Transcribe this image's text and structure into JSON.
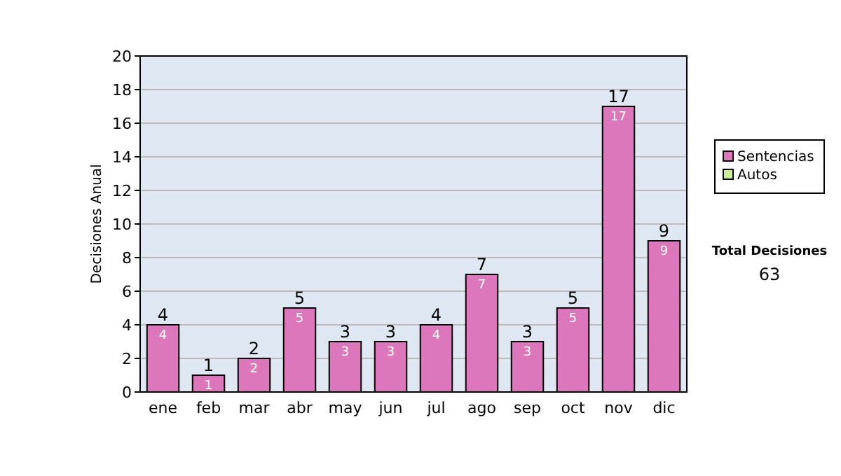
{
  "chart_data": {
    "type": "bar",
    "stacked": true,
    "ylabel": "Decisiones Anual",
    "categories": [
      "ene",
      "feb",
      "mar",
      "abr",
      "may",
      "jun",
      "jul",
      "ago",
      "sep",
      "oct",
      "nov",
      "dic"
    ],
    "series": [
      {
        "name": "Sentencias",
        "color": "#dd77bb",
        "values": [
          4,
          1,
          2,
          5,
          3,
          3,
          4,
          7,
          3,
          5,
          17,
          9
        ],
        "value_labels": [
          "4",
          "1",
          "2",
          "5",
          "3",
          "3",
          "4",
          "7",
          "3",
          "5",
          "17",
          "9"
        ]
      },
      {
        "name": "Autos",
        "color": "#ccee99",
        "values": [
          0,
          0,
          0,
          0,
          0,
          0,
          0,
          0,
          0,
          0,
          0,
          0
        ]
      }
    ],
    "totals": [
      "4",
      "1",
      "2",
      "5",
      "3",
      "3",
      "4",
      "7",
      "3",
      "5",
      "17",
      "9"
    ],
    "ylim": [
      0,
      20
    ],
    "yticks": [
      0,
      2,
      4,
      6,
      8,
      10,
      12,
      14,
      16,
      18,
      20
    ],
    "grid": "y",
    "legend": "right",
    "annotations": [
      "Total Decisiones",
      "63"
    ]
  }
}
